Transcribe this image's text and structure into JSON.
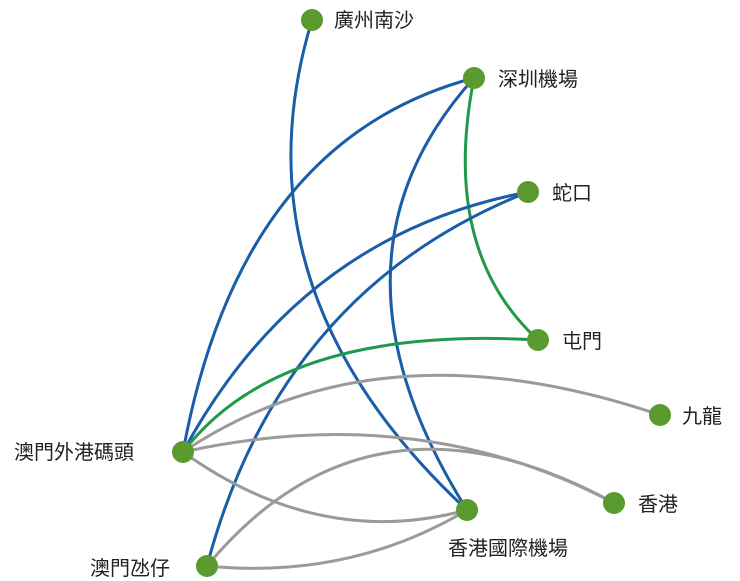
{
  "diagram": {
    "colors": {
      "node": "#5a9a2e",
      "blue": "#1a5ea8",
      "green": "#1f9a4a",
      "gray": "#9a9a9a"
    },
    "nodes": [
      {
        "id": "nansha",
        "label": "廣州南沙"
      },
      {
        "id": "shenzhen_airport",
        "label": "深圳機場"
      },
      {
        "id": "shekou",
        "label": "蛇口"
      },
      {
        "id": "tuen_mun",
        "label": "屯門"
      },
      {
        "id": "kowloon",
        "label": "九龍"
      },
      {
        "id": "macau_outer",
        "label": "澳門外港碼頭"
      },
      {
        "id": "hong_kong",
        "label": "香港"
      },
      {
        "id": "hk_airport",
        "label": "香港國際機場"
      },
      {
        "id": "taipa",
        "label": "澳門氹仔"
      }
    ],
    "edges": [
      {
        "from": "nansha",
        "to": "hk_airport",
        "color": "blue"
      },
      {
        "from": "shenzhen_airport",
        "to": "macau_outer",
        "color": "blue"
      },
      {
        "from": "shenzhen_airport",
        "to": "hk_airport",
        "color": "blue"
      },
      {
        "from": "shenzhen_airport",
        "to": "tuen_mun",
        "color": "green"
      },
      {
        "from": "shekou",
        "to": "macau_outer",
        "color": "blue"
      },
      {
        "from": "shekou",
        "to": "taipa",
        "color": "blue"
      },
      {
        "from": "tuen_mun",
        "to": "macau_outer",
        "color": "green"
      },
      {
        "from": "kowloon",
        "to": "macau_outer",
        "color": "gray"
      },
      {
        "from": "macau_outer",
        "to": "hong_kong",
        "color": "gray"
      },
      {
        "from": "macau_outer",
        "to": "hk_airport",
        "color": "gray"
      },
      {
        "from": "taipa",
        "to": "hong_kong",
        "color": "gray"
      },
      {
        "from": "taipa",
        "to": "hk_airport",
        "color": "gray"
      }
    ]
  }
}
